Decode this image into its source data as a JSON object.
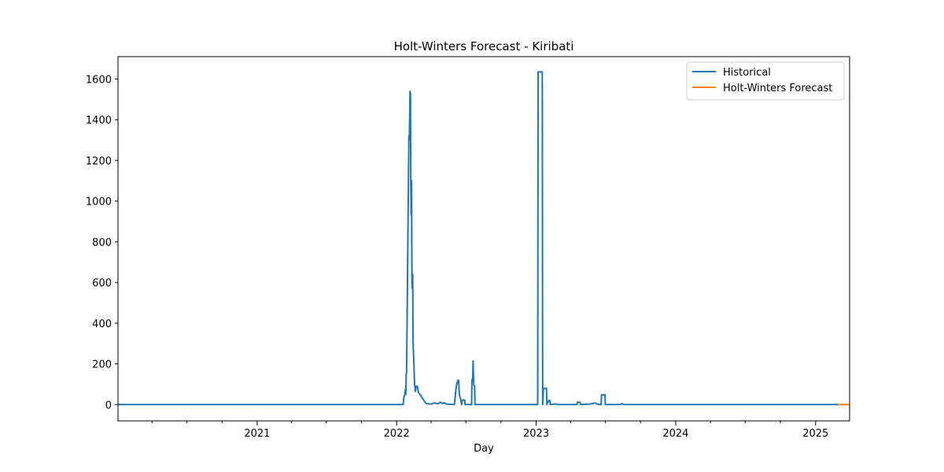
{
  "chart_data": {
    "type": "line",
    "title": "Holt-Winters Forecast - Kiribati",
    "xlabel": "Day",
    "ylabel": "",
    "x_type": "date",
    "xlim": [
      "2020-01-03",
      "2025-03-31"
    ],
    "ylim": [
      -80,
      1710
    ],
    "x_ticks": [
      {
        "label": "2021",
        "value": "2021-01-01"
      },
      {
        "label": "2022",
        "value": "2022-01-01"
      },
      {
        "label": "2023",
        "value": "2023-01-01"
      },
      {
        "label": "2024",
        "value": "2024-01-01"
      },
      {
        "label": "2025",
        "value": "2025-01-01"
      }
    ],
    "y_ticks": [
      0,
      200,
      400,
      600,
      800,
      1000,
      1200,
      1400,
      1600
    ],
    "grid": false,
    "legend_position": "top-right",
    "colors": {
      "historical": "#1f77b4",
      "forecast": "#ff7f0e"
    },
    "series": [
      {
        "name": "Historical",
        "color": "#1f77b4",
        "points": [
          [
            "2020-01-03",
            0
          ],
          [
            "2022-01-18",
            0
          ],
          [
            "2022-01-20",
            40
          ],
          [
            "2022-01-22",
            45
          ],
          [
            "2022-01-24",
            75
          ],
          [
            "2022-01-25",
            50
          ],
          [
            "2022-01-26",
            150
          ],
          [
            "2022-01-27",
            160
          ],
          [
            "2022-02-02",
            1320
          ],
          [
            "2022-02-03",
            1300
          ],
          [
            "2022-02-04",
            1400
          ],
          [
            "2022-02-05",
            1540
          ],
          [
            "2022-02-06",
            1530
          ],
          [
            "2022-02-07",
            1100
          ],
          [
            "2022-02-08",
            930
          ],
          [
            "2022-02-09",
            1100
          ],
          [
            "2022-02-10",
            600
          ],
          [
            "2022-02-11",
            570
          ],
          [
            "2022-02-12",
            640
          ],
          [
            "2022-02-13",
            310
          ],
          [
            "2022-02-14",
            250
          ],
          [
            "2022-02-16",
            150
          ],
          [
            "2022-02-17",
            100
          ],
          [
            "2022-02-19",
            65
          ],
          [
            "2022-02-21",
            90
          ],
          [
            "2022-02-24",
            90
          ],
          [
            "2022-02-27",
            60
          ],
          [
            "2022-03-05",
            45
          ],
          [
            "2022-03-10",
            30
          ],
          [
            "2022-03-15",
            15
          ],
          [
            "2022-03-20",
            5
          ],
          [
            "2022-04-01",
            2
          ],
          [
            "2022-04-10",
            8
          ],
          [
            "2022-04-20",
            4
          ],
          [
            "2022-04-25",
            12
          ],
          [
            "2022-05-01",
            5
          ],
          [
            "2022-05-05",
            9
          ],
          [
            "2022-05-10",
            3
          ],
          [
            "2022-06-01",
            0
          ],
          [
            "2022-06-06",
            90
          ],
          [
            "2022-06-10",
            118
          ],
          [
            "2022-06-12",
            120
          ],
          [
            "2022-06-14",
            50
          ],
          [
            "2022-06-18",
            20
          ],
          [
            "2022-06-20",
            0
          ],
          [
            "2022-06-22",
            22
          ],
          [
            "2022-06-28",
            22
          ],
          [
            "2022-06-29",
            0
          ],
          [
            "2022-07-16",
            0
          ],
          [
            "2022-07-17",
            120
          ],
          [
            "2022-07-19",
            130
          ],
          [
            "2022-07-20",
            215
          ],
          [
            "2022-07-21",
            130
          ],
          [
            "2022-07-22",
            95
          ],
          [
            "2022-07-24",
            90
          ],
          [
            "2022-07-25",
            0
          ],
          [
            "2023-01-05",
            0
          ],
          [
            "2023-01-06",
            1635
          ],
          [
            "2023-01-17",
            1635
          ],
          [
            "2023-01-18",
            0
          ],
          [
            "2023-01-20",
            80
          ],
          [
            "2023-01-28",
            80
          ],
          [
            "2023-01-29",
            0
          ],
          [
            "2023-02-03",
            20
          ],
          [
            "2023-02-06",
            20
          ],
          [
            "2023-02-07",
            0
          ],
          [
            "2023-02-20",
            3
          ],
          [
            "2023-03-01",
            0
          ],
          [
            "2023-04-18",
            0
          ],
          [
            "2023-04-19",
            12
          ],
          [
            "2023-04-26",
            12
          ],
          [
            "2023-04-27",
            0
          ],
          [
            "2023-05-20",
            2
          ],
          [
            "2023-06-05",
            8
          ],
          [
            "2023-06-10",
            2
          ],
          [
            "2023-06-20",
            0
          ],
          [
            "2023-06-21",
            48
          ],
          [
            "2023-06-30",
            48
          ],
          [
            "2023-07-01",
            0
          ],
          [
            "2023-08-10",
            0
          ],
          [
            "2023-08-14",
            5
          ],
          [
            "2023-08-18",
            0
          ],
          [
            "2025-03-01",
            0
          ]
        ]
      },
      {
        "name": "Holt-Winters Forecast",
        "color": "#ff7f0e",
        "points": [
          [
            "2025-03-01",
            0
          ],
          [
            "2025-03-31",
            0
          ]
        ]
      }
    ]
  }
}
